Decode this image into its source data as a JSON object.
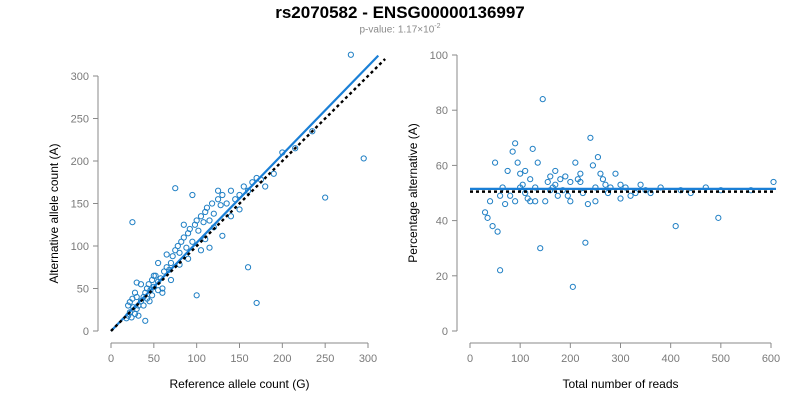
{
  "header": {
    "title": "rs2070582 - ENSG00000136997",
    "pvalue_prefix": "p-value: 1.17×10",
    "pvalue_exp": "-2"
  },
  "colors": {
    "points": "#1f7fc4",
    "fit_line": "#1a7fd6",
    "reference_line": "#000000",
    "axis": "#8a8a8a",
    "tick_text": "#7a7a7a"
  },
  "chart_data": [
    {
      "type": "scatter",
      "xlabel": "Reference allele count (G)",
      "ylabel": "Alternative allele count (A)",
      "xlim": [
        0,
        300
      ],
      "ylim": [
        0,
        300
      ],
      "xticks": [
        0,
        50,
        100,
        150,
        200,
        250,
        300
      ],
      "yticks": [
        0,
        50,
        100,
        150,
        200,
        250,
        300
      ],
      "fit_line": {
        "x": [
          0,
          312
        ],
        "y": [
          0,
          324
        ]
      },
      "reference_line": {
        "x": [
          0,
          320
        ],
        "y": [
          0,
          320
        ]
      },
      "points": [
        [
          18,
          15
        ],
        [
          20,
          18
        ],
        [
          22,
          22
        ],
        [
          24,
          16
        ],
        [
          26,
          28
        ],
        [
          28,
          20
        ],
        [
          30,
          26
        ],
        [
          22,
          34
        ],
        [
          25,
          38
        ],
        [
          30,
          40
        ],
        [
          32,
          30
        ],
        [
          35,
          35
        ],
        [
          38,
          40
        ],
        [
          40,
          45
        ],
        [
          42,
          50
        ],
        [
          44,
          55
        ],
        [
          46,
          48
        ],
        [
          48,
          60
        ],
        [
          50,
          52
        ],
        [
          52,
          65
        ],
        [
          55,
          58
        ],
        [
          58,
          62
        ],
        [
          60,
          50
        ],
        [
          62,
          70
        ],
        [
          65,
          75
        ],
        [
          68,
          72
        ],
        [
          70,
          80
        ],
        [
          72,
          88
        ],
        [
          75,
          95
        ],
        [
          78,
          100
        ],
        [
          80,
          92
        ],
        [
          82,
          105
        ],
        [
          85,
          110
        ],
        [
          88,
          98
        ],
        [
          90,
          115
        ],
        [
          92,
          120
        ],
        [
          95,
          105
        ],
        [
          98,
          125
        ],
        [
          100,
          130
        ],
        [
          102,
          118
        ],
        [
          105,
          135
        ],
        [
          108,
          128
        ],
        [
          110,
          140
        ],
        [
          112,
          145
        ],
        [
          115,
          130
        ],
        [
          118,
          150
        ],
        [
          120,
          138
        ],
        [
          125,
          155
        ],
        [
          128,
          148
        ],
        [
          130,
          160
        ],
        [
          135,
          150
        ],
        [
          140,
          165
        ],
        [
          145,
          155
        ],
        [
          150,
          160
        ],
        [
          155,
          170
        ],
        [
          160,
          165
        ],
        [
          165,
          175
        ],
        [
          170,
          180
        ],
        [
          175,
          178
        ],
        [
          180,
          170
        ],
        [
          190,
          185
        ],
        [
          200,
          210
        ],
        [
          215,
          215
        ],
        [
          235,
          235
        ],
        [
          280,
          325
        ],
        [
          295,
          203
        ],
        [
          250,
          157
        ],
        [
          170,
          33
        ],
        [
          100,
          42
        ],
        [
          160,
          75
        ],
        [
          25,
          128
        ],
        [
          30,
          57
        ],
        [
          40,
          12
        ],
        [
          45,
          35
        ],
        [
          55,
          80
        ],
        [
          60,
          45
        ],
        [
          35,
          55
        ],
        [
          50,
          65
        ],
        [
          75,
          168
        ],
        [
          95,
          160
        ],
        [
          125,
          165
        ],
        [
          115,
          98
        ],
        [
          130,
          112
        ],
        [
          85,
          125
        ],
        [
          70,
          60
        ],
        [
          65,
          90
        ],
        [
          140,
          135
        ],
        [
          150,
          143
        ],
        [
          120,
          122
        ],
        [
          110,
          108
        ],
        [
          105,
          95
        ],
        [
          90,
          85
        ],
        [
          80,
          78
        ],
        [
          55,
          48
        ],
        [
          48,
          42
        ],
        [
          38,
          30
        ],
        [
          28,
          45
        ],
        [
          20,
          30
        ],
        [
          32,
          18
        ],
        [
          42,
          38
        ]
      ]
    },
    {
      "type": "scatter",
      "xlabel": "Total number of reads",
      "ylabel": "Percentage alternative (A)",
      "xlim": [
        0,
        600
      ],
      "ylim": [
        0,
        100
      ],
      "xticks": [
        0,
        100,
        200,
        300,
        400,
        500,
        600
      ],
      "yticks": [
        0,
        20,
        40,
        60,
        80,
        100
      ],
      "fit_line": {
        "x": [
          0,
          610
        ],
        "y": [
          51.5,
          51.5
        ]
      },
      "reference_line": {
        "x": [
          0,
          610
        ],
        "y": [
          50.5,
          50.5
        ]
      },
      "points": [
        [
          30,
          43
        ],
        [
          35,
          41
        ],
        [
          40,
          47
        ],
        [
          45,
          38
        ],
        [
          50,
          61
        ],
        [
          55,
          36
        ],
        [
          60,
          22
        ],
        [
          65,
          52
        ],
        [
          70,
          46
        ],
        [
          75,
          58
        ],
        [
          80,
          49
        ],
        [
          85,
          65
        ],
        [
          90,
          68
        ],
        [
          95,
          61
        ],
        [
          100,
          57
        ],
        [
          105,
          53
        ],
        [
          110,
          50
        ],
        [
          115,
          48
        ],
        [
          120,
          47
        ],
        [
          125,
          66
        ],
        [
          130,
          52
        ],
        [
          135,
          61
        ],
        [
          140,
          30
        ],
        [
          145,
          84
        ],
        [
          150,
          47
        ],
        [
          155,
          54
        ],
        [
          160,
          56
        ],
        [
          165,
          52
        ],
        [
          170,
          58
        ],
        [
          175,
          49
        ],
        [
          180,
          55
        ],
        [
          185,
          51
        ],
        [
          190,
          56
        ],
        [
          195,
          49
        ],
        [
          200,
          47
        ],
        [
          205,
          16
        ],
        [
          210,
          61
        ],
        [
          215,
          55
        ],
        [
          220,
          54
        ],
        [
          225,
          50
        ],
        [
          230,
          32
        ],
        [
          235,
          46
        ],
        [
          240,
          70
        ],
        [
          245,
          60
        ],
        [
          250,
          52
        ],
        [
          255,
          63
        ],
        [
          260,
          57
        ],
        [
          265,
          55
        ],
        [
          270,
          53
        ],
        [
          275,
          50
        ],
        [
          280,
          52
        ],
        [
          290,
          57
        ],
        [
          300,
          48
        ],
        [
          310,
          52
        ],
        [
          320,
          49
        ],
        [
          330,
          50
        ],
        [
          340,
          53
        ],
        [
          350,
          51
        ],
        [
          360,
          50
        ],
        [
          380,
          52
        ],
        [
          410,
          38
        ],
        [
          420,
          51
        ],
        [
          440,
          50
        ],
        [
          470,
          52
        ],
        [
          495,
          41
        ],
        [
          500,
          51
        ],
        [
          560,
          51
        ],
        [
          605,
          54
        ],
        [
          90,
          47
        ],
        [
          110,
          58
        ],
        [
          130,
          47
        ],
        [
          160,
          51
        ],
        [
          200,
          54
        ],
        [
          250,
          47
        ],
        [
          300,
          53
        ],
        [
          100,
          52
        ],
        [
          120,
          55
        ],
        [
          170,
          53
        ],
        [
          220,
          57
        ],
        [
          60,
          49
        ]
      ]
    }
  ]
}
